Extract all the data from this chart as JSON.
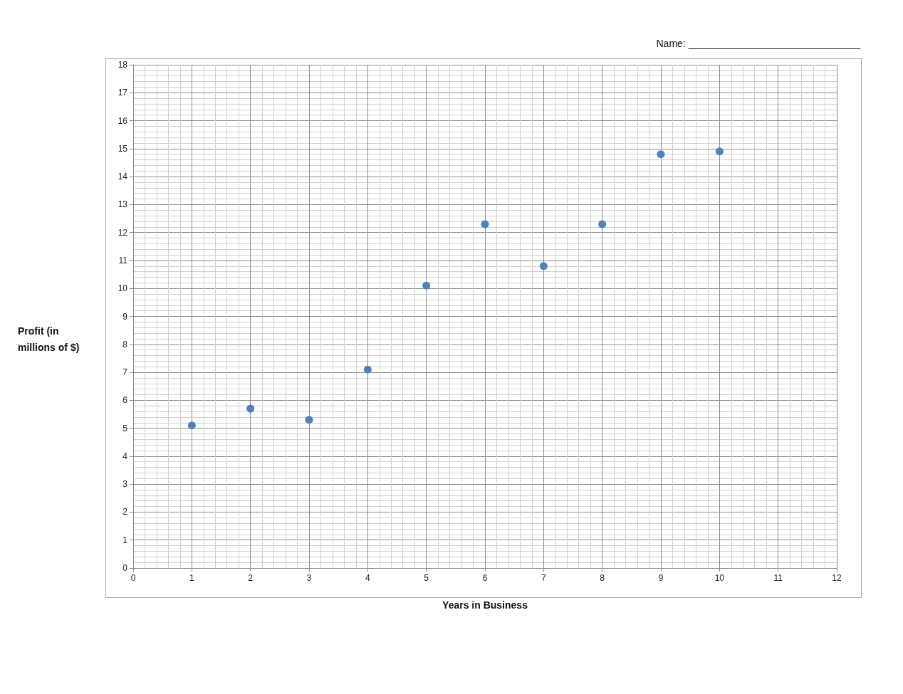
{
  "chart_data": {
    "type": "scatter",
    "xlabel": "Years in Business",
    "ylabel": "Profit (in millions of $)",
    "annotations": [
      "Name: _______________________________"
    ],
    "x": [
      1,
      2,
      3,
      4,
      5,
      6,
      7,
      8,
      9,
      10
    ],
    "series": [
      {
        "color": "#4f81bd",
        "values": [
          5.1,
          5.7,
          5.3,
          7.1,
          10.1,
          12.3,
          10.8,
          12.3,
          14.8,
          14.9
        ]
      }
    ],
    "xlim": [
      0,
      12
    ],
    "xticks": [
      0,
      1,
      2,
      3,
      4,
      5,
      6,
      7,
      8,
      9,
      10,
      11,
      12
    ],
    "ylim": [
      0,
      18
    ],
    "yticks": [
      0,
      1,
      2,
      3,
      4,
      5,
      6,
      7,
      8,
      9,
      10,
      11,
      12,
      13,
      14,
      15,
      16,
      17,
      18
    ],
    "grid": true,
    "marker": "circle"
  }
}
